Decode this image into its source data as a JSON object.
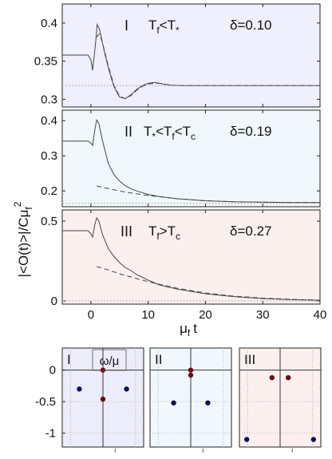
{
  "figure": {
    "ylabel_main": "|<O(t)>|/Cμ",
    "ylabel_main_sub": "f",
    "ylabel_main_sup": "2",
    "xlabel_main": "μ",
    "xlabel_main_sub": "f",
    "xlabel_main_tail": "t"
  },
  "chart_data": [
    {
      "type": "line",
      "panel": "I",
      "label_regime": "T_f<T_*",
      "label_delta": "δ=0.10",
      "xlim": [
        -5,
        40
      ],
      "ylim": [
        0.29,
        0.425
      ],
      "yticks": [
        0.3,
        0.35,
        0.4
      ],
      "ytick_labels": [
        "0.3",
        "0.35",
        "0.4"
      ],
      "xtick_labels_shown": false,
      "background": "#efeffd",
      "series": [
        {
          "style": "solid",
          "x": [
            -5,
            -0.5,
            0,
            0.3,
            0.8,
            1.1,
            1.5,
            2,
            2.5,
            3,
            4,
            5,
            6,
            7,
            8,
            9,
            10,
            11,
            12,
            13,
            14,
            16,
            18,
            20,
            25,
            30,
            40
          ],
          "y": [
            0.358,
            0.358,
            0.352,
            0.338,
            0.372,
            0.398,
            0.392,
            0.375,
            0.358,
            0.343,
            0.317,
            0.303,
            0.301,
            0.306,
            0.313,
            0.318,
            0.321,
            0.322,
            0.321,
            0.3195,
            0.3185,
            0.318,
            0.318,
            0.318,
            0.318,
            0.318,
            0.318
          ]
        },
        {
          "style": "dashed",
          "x": [
            1,
            1.5,
            2,
            2.5,
            3,
            4,
            5,
            6,
            7,
            8,
            9,
            10,
            11,
            12,
            13,
            14,
            16,
            18,
            20,
            25,
            30,
            40
          ],
          "y": [
            0.382,
            0.386,
            0.375,
            0.36,
            0.345,
            0.319,
            0.304,
            0.301,
            0.305,
            0.312,
            0.317,
            0.32,
            0.321,
            0.321,
            0.3195,
            0.3185,
            0.318,
            0.318,
            0.318,
            0.318,
            0.318,
            0.318
          ]
        },
        {
          "style": "dotted",
          "x": [
            -5,
            40
          ],
          "y": [
            0.318,
            0.318
          ]
        }
      ]
    },
    {
      "type": "line",
      "panel": "II",
      "label_regime": "T_*<T_f<T_c",
      "label_delta": "δ=0.19",
      "xlim": [
        -5,
        40
      ],
      "ylim": [
        0.155,
        0.43
      ],
      "yticks": [
        0.2,
        0.3,
        0.4
      ],
      "ytick_labels": [
        "0.2",
        "0.3",
        "0.4"
      ],
      "xtick_labels_shown": false,
      "background": "#f1f8fd",
      "series": [
        {
          "style": "solid",
          "x": [
            -5,
            -0.5,
            0,
            0.3,
            0.7,
            1,
            1.4,
            2,
            3,
            4,
            5,
            6,
            7,
            8,
            10,
            12,
            15,
            20,
            25,
            30,
            35,
            40
          ],
          "y": [
            0.342,
            0.342,
            0.336,
            0.33,
            0.375,
            0.402,
            0.392,
            0.345,
            0.28,
            0.247,
            0.228,
            0.215,
            0.206,
            0.2,
            0.19,
            0.184,
            0.178,
            0.172,
            0.169,
            0.168,
            0.167,
            0.167
          ]
        },
        {
          "style": "dashed",
          "x": [
            1,
            3,
            5,
            7,
            10,
            15,
            20,
            25,
            30,
            35,
            40
          ],
          "y": [
            0.214,
            0.207,
            0.2,
            0.194,
            0.187,
            0.178,
            0.172,
            0.169,
            0.168,
            0.167,
            0.167
          ]
        },
        {
          "style": "dotted",
          "x": [
            -5,
            40
          ],
          "y": [
            0.165,
            0.165
          ]
        }
      ]
    },
    {
      "type": "line",
      "panel": "III",
      "label_regime": "T_f>T_c",
      "label_delta": "δ=0.27",
      "xlim": [
        -5,
        40
      ],
      "ylim": [
        -0.02,
        0.57
      ],
      "yticks": [
        0,
        0.5
      ],
      "ytick_labels": [
        "0",
        "0.5"
      ],
      "xticks": [
        0,
        10,
        20,
        30,
        40
      ],
      "xtick_labels": [
        "0",
        "10",
        "20",
        "30",
        "40"
      ],
      "background": "#fcf0ee",
      "series": [
        {
          "style": "solid",
          "x": [
            -5,
            -0.5,
            0,
            0.3,
            0.7,
            1,
            1.4,
            2,
            3,
            4,
            5,
            6,
            7,
            8,
            10,
            12,
            15,
            20,
            25,
            30,
            35,
            40
          ],
          "y": [
            0.44,
            0.44,
            0.42,
            0.4,
            0.48,
            0.52,
            0.5,
            0.42,
            0.33,
            0.28,
            0.24,
            0.21,
            0.19,
            0.165,
            0.13,
            0.1,
            0.075,
            0.045,
            0.027,
            0.015,
            0.008,
            0.004
          ]
        },
        {
          "style": "dashed",
          "x": [
            1,
            3,
            5,
            7,
            10,
            15,
            20,
            25,
            30,
            35,
            40
          ],
          "y": [
            0.215,
            0.195,
            0.17,
            0.15,
            0.12,
            0.08,
            0.05,
            0.03,
            0.018,
            0.01,
            0.005
          ]
        },
        {
          "style": "dotted",
          "x": [
            -5,
            40
          ],
          "y": [
            0,
            0
          ]
        }
      ]
    },
    {
      "type": "scatter",
      "panel": "I",
      "label": "I",
      "annotation": "ω/μ",
      "xlim": [
        -1,
        1
      ],
      "ylim": [
        -1.22,
        0.35
      ],
      "yticks": [
        0,
        -0.5,
        -1
      ],
      "ytick_labels": [
        "0",
        "-0.5",
        "-1"
      ],
      "background": "#ececfb",
      "points": [
        {
          "x": 0,
          "y": 0,
          "color": "#6b0a12"
        },
        {
          "x": 0,
          "y": -0.46,
          "color": "#6b0a12"
        },
        {
          "x": -0.58,
          "y": -0.3,
          "color": "#0a0f5a"
        },
        {
          "x": 0.58,
          "y": -0.3,
          "color": "#0a0f5a"
        }
      ]
    },
    {
      "type": "scatter",
      "panel": "II",
      "label": "II",
      "xlim": [
        -1,
        1
      ],
      "ylim": [
        -1.22,
        0.35
      ],
      "background": "#f1f8fd",
      "points": [
        {
          "x": 0,
          "y": 0,
          "color": "#6b0a12"
        },
        {
          "x": 0,
          "y": -0.08,
          "color": "#6b0a12"
        },
        {
          "x": -0.42,
          "y": -0.52,
          "color": "#0a0f5a"
        },
        {
          "x": 0.42,
          "y": -0.52,
          "color": "#0a0f5a"
        }
      ]
    },
    {
      "type": "scatter",
      "panel": "III",
      "label": "III",
      "xlim": [
        -1,
        1
      ],
      "ylim": [
        -1.22,
        0.35
      ],
      "background": "#fcf0ee",
      "points": [
        {
          "x": -0.2,
          "y": -0.12,
          "color": "#6b0a12"
        },
        {
          "x": 0.2,
          "y": -0.12,
          "color": "#6b0a12"
        },
        {
          "x": -0.82,
          "y": -1.1,
          "color": "#0a0f5a"
        },
        {
          "x": 0.82,
          "y": -1.1,
          "color": "#0a0f5a"
        }
      ]
    }
  ]
}
